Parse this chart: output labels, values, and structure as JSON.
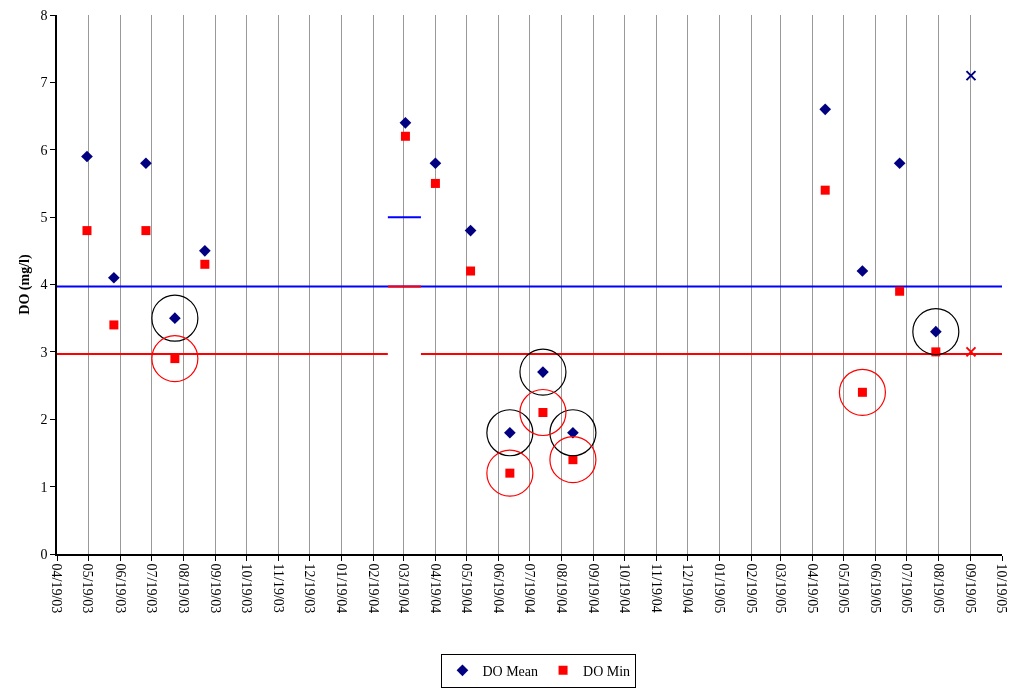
{
  "chart_data": {
    "type": "scatter",
    "ylabel": "DO (mg/l)",
    "xlim": [
      "2003-04-19",
      "2005-10-19"
    ],
    "xticks": [
      {
        "value": "2003-04-19",
        "label": "04/19/03"
      },
      {
        "value": "2003-05-19",
        "label": "05/19/03"
      },
      {
        "value": "2003-06-19",
        "label": "06/19/03"
      },
      {
        "value": "2003-07-19",
        "label": "07/19/03"
      },
      {
        "value": "2003-08-19",
        "label": "08/19/03"
      },
      {
        "value": "2003-09-19",
        "label": "09/19/03"
      },
      {
        "value": "2003-10-19",
        "label": "10/19/03"
      },
      {
        "value": "2003-11-19",
        "label": "11/19/03"
      },
      {
        "value": "2003-12-19",
        "label": "12/19/03"
      },
      {
        "value": "2004-01-19",
        "label": "01/19/04"
      },
      {
        "value": "2004-02-19",
        "label": "02/19/04"
      },
      {
        "value": "2004-03-19",
        "label": "03/19/04"
      },
      {
        "value": "2004-04-19",
        "label": "04/19/04"
      },
      {
        "value": "2004-05-19",
        "label": "05/19/04"
      },
      {
        "value": "2004-06-19",
        "label": "06/19/04"
      },
      {
        "value": "2004-07-19",
        "label": "07/19/04"
      },
      {
        "value": "2004-08-19",
        "label": "08/19/04"
      },
      {
        "value": "2004-09-19",
        "label": "09/19/04"
      },
      {
        "value": "2004-10-19",
        "label": "10/19/04"
      },
      {
        "value": "2004-11-19",
        "label": "11/19/04"
      },
      {
        "value": "2004-12-19",
        "label": "12/19/04"
      },
      {
        "value": "2005-01-19",
        "label": "01/19/05"
      },
      {
        "value": "2005-02-19",
        "label": "02/19/05"
      },
      {
        "value": "2005-03-19",
        "label": "03/19/05"
      },
      {
        "value": "2005-04-19",
        "label": "04/19/05"
      },
      {
        "value": "2005-05-19",
        "label": "05/19/05"
      },
      {
        "value": "2005-06-19",
        "label": "06/19/05"
      },
      {
        "value": "2005-07-19",
        "label": "07/19/05"
      },
      {
        "value": "2005-08-19",
        "label": "08/19/05"
      },
      {
        "value": "2005-09-19",
        "label": "09/19/05"
      },
      {
        "value": "2005-10-19",
        "label": "10/19/05"
      }
    ],
    "ylim": [
      0,
      8
    ],
    "yticks": [
      0,
      1,
      2,
      3,
      4,
      5,
      6,
      7,
      8
    ],
    "grid": "x",
    "legend": "bottom",
    "series": [
      {
        "type": "line",
        "color": "#0000ff",
        "x": [
          "2003-04-19",
          "2005-10-19"
        ],
        "values": [
          3.97,
          3.97
        ]
      },
      {
        "type": "line",
        "color": "#0000ff",
        "x": [
          "2004-03-04",
          "2004-04-05"
        ],
        "values": [
          5.0,
          5.0
        ]
      },
      {
        "type": "line",
        "color": "#ff0000",
        "x": [
          "2003-04-19",
          "2004-03-04"
        ],
        "values": [
          2.97,
          2.97
        ]
      },
      {
        "type": "line",
        "color": "#ff0000",
        "x": [
          "2004-03-04",
          "2004-04-05"
        ],
        "values": [
          3.97,
          3.97
        ]
      },
      {
        "type": "line",
        "color": "#ff0000",
        "x": [
          "2004-04-05",
          "2005-10-19"
        ],
        "values": [
          2.97,
          2.97
        ]
      },
      {
        "name": "DO Mean",
        "marker": "diamond",
        "color": "#000080",
        "x": [
          "2003-05-18",
          "2003-06-13",
          "2003-07-14",
          "2003-08-11",
          "2003-09-09",
          "2004-03-21",
          "2004-04-19",
          "2004-05-23",
          "2004-06-30",
          "2004-08-01",
          "2004-08-30",
          "2005-05-01",
          "2005-06-06",
          "2005-07-12",
          "2005-08-16"
        ],
        "values": [
          5.9,
          4.1,
          5.8,
          3.5,
          4.5,
          6.4,
          5.8,
          4.8,
          1.8,
          2.7,
          1.8,
          6.6,
          4.2,
          5.8,
          3.3
        ]
      },
      {
        "name": "DO Min",
        "marker": "square",
        "color": "#ff0000",
        "x": [
          "2003-05-18",
          "2003-06-13",
          "2003-07-14",
          "2003-08-11",
          "2003-09-09",
          "2004-03-21",
          "2004-04-19",
          "2004-05-23",
          "2004-06-30",
          "2004-08-01",
          "2004-08-30",
          "2005-05-01",
          "2005-06-06",
          "2005-07-12",
          "2005-08-16"
        ],
        "values": [
          4.8,
          3.4,
          4.8,
          2.9,
          4.3,
          6.2,
          5.5,
          4.2,
          1.2,
          2.1,
          1.4,
          5.4,
          2.4,
          3.9,
          3.0
        ]
      },
      {
        "marker": "cross",
        "color": "#000080",
        "x": [
          "2005-09-19"
        ],
        "values": [
          7.1
        ]
      },
      {
        "marker": "cross",
        "color": "#ff0000",
        "x": [
          "2005-09-19"
        ],
        "values": [
          3.0
        ]
      }
    ]
  }
}
